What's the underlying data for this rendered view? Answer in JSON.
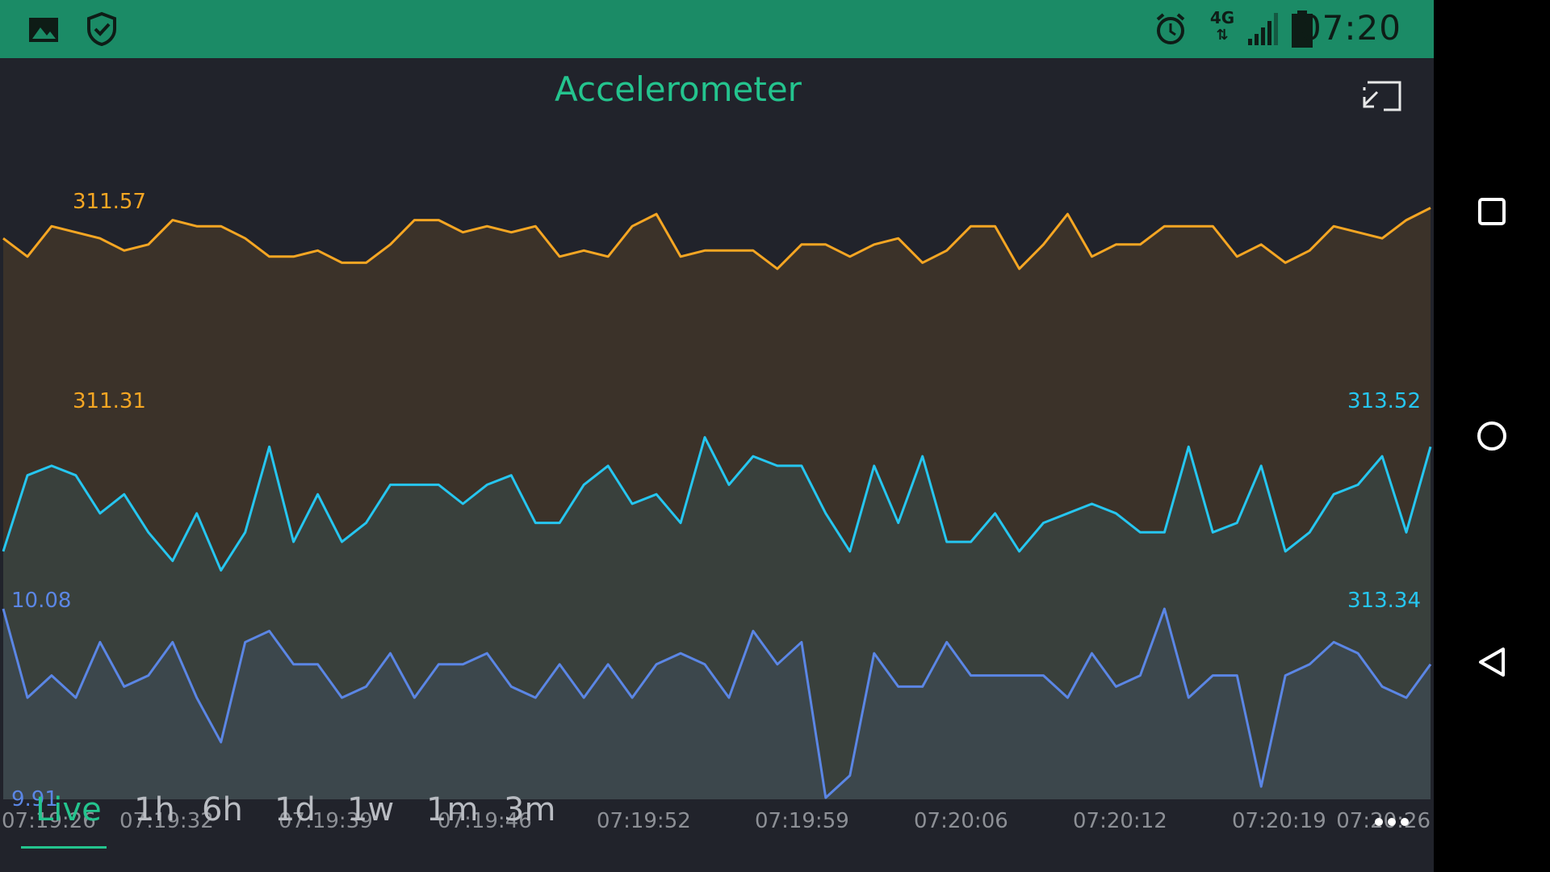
{
  "status_bar": {
    "time": "07:20",
    "network": "4G",
    "left_icons": [
      "gallery-icon",
      "shield-check-icon"
    ],
    "right_icons": [
      "alarm-icon",
      "network-4g-icon",
      "signal-icon",
      "battery-icon"
    ]
  },
  "widget": {
    "title": "Accelerometer",
    "exit_fullscreen_icon": "exit-fullscreen-icon"
  },
  "tabs": [
    {
      "label": "Live",
      "active": true
    },
    {
      "label": "1h",
      "active": false
    },
    {
      "label": "6h",
      "active": false
    },
    {
      "label": "1d",
      "active": false
    },
    {
      "label": "1w",
      "active": false
    },
    {
      "label": "1m",
      "active": false
    },
    {
      "label": "3m",
      "active": false
    }
  ],
  "more_icon": "more-horizontal-icon",
  "nav": [
    "recents-square-icon",
    "home-circle-icon",
    "back-triangle-icon"
  ],
  "colors": {
    "accent": "#24c48e",
    "status_bar": "#1b8b66",
    "background": "#21232b",
    "series_orange": "#f5a623",
    "series_cyan": "#26c6f0",
    "series_blue": "#5b86e5"
  },
  "chart_data": {
    "type": "line",
    "x_ticks": [
      "07:19:26",
      "07:19:32",
      "07:19:39",
      "07:19:46",
      "07:19:52",
      "07:19:59",
      "07:20:06",
      "07:20:12",
      "07:20:19",
      "07:20:26"
    ],
    "series": [
      {
        "color": "#f5a623",
        "min_label": "311.31",
        "max_label": "311.57",
        "range": [
          311.31,
          311.57
        ],
        "values": [
          311.51,
          311.48,
          311.53,
          311.52,
          311.51,
          311.49,
          311.5,
          311.54,
          311.53,
          311.53,
          311.51,
          311.48,
          311.48,
          311.49,
          311.47,
          311.47,
          311.5,
          311.54,
          311.54,
          311.52,
          311.53,
          311.52,
          311.53,
          311.48,
          311.49,
          311.48,
          311.53,
          311.55,
          311.48,
          311.49,
          311.49,
          311.49,
          311.46,
          311.5,
          311.5,
          311.48,
          311.5,
          311.51,
          311.47,
          311.49,
          311.53,
          311.53,
          311.46,
          311.5,
          311.55,
          311.48,
          311.5,
          311.5,
          311.53,
          311.53,
          311.53,
          311.48,
          311.5,
          311.47,
          311.49,
          311.53,
          311.52,
          311.51,
          311.54,
          311.56
        ]
      },
      {
        "color": "#26c6f0",
        "min_label": "313.34",
        "max_label": "313.52",
        "range": [
          313.34,
          313.52
        ],
        "values": [
          313.38,
          313.46,
          313.47,
          313.46,
          313.42,
          313.44,
          313.4,
          313.37,
          313.42,
          313.36,
          313.4,
          313.49,
          313.39,
          313.44,
          313.39,
          313.41,
          313.45,
          313.45,
          313.45,
          313.43,
          313.45,
          313.46,
          313.41,
          313.41,
          313.45,
          313.47,
          313.43,
          313.44,
          313.41,
          313.5,
          313.45,
          313.48,
          313.47,
          313.47,
          313.42,
          313.38,
          313.47,
          313.41,
          313.48,
          313.39,
          313.39,
          313.42,
          313.38,
          313.41,
          313.42,
          313.43,
          313.42,
          313.4,
          313.4,
          313.49,
          313.4,
          313.41,
          313.47,
          313.38,
          313.4,
          313.44,
          313.45,
          313.48,
          313.4,
          313.49
        ]
      },
      {
        "color": "#5b86e5",
        "min_label": "9.91",
        "max_label": "10.08",
        "range": [
          9.91,
          10.08
        ],
        "values": [
          10.08,
          10.0,
          10.02,
          10.0,
          10.05,
          10.01,
          10.02,
          10.05,
          10.0,
          9.96,
          10.05,
          10.06,
          10.03,
          10.03,
          10.0,
          10.01,
          10.04,
          10.0,
          10.03,
          10.03,
          10.04,
          10.01,
          10.0,
          10.03,
          10.0,
          10.03,
          10.0,
          10.03,
          10.04,
          10.03,
          10.0,
          10.06,
          10.03,
          10.05,
          9.91,
          9.93,
          10.04,
          10.01,
          10.01,
          10.05,
          10.02,
          10.02,
          10.02,
          10.02,
          10.0,
          10.04,
          10.01,
          10.02,
          10.08,
          10.0,
          10.02,
          10.02,
          9.92,
          10.02,
          10.03,
          10.05,
          10.04,
          10.01,
          10.0,
          10.03
        ]
      }
    ]
  }
}
